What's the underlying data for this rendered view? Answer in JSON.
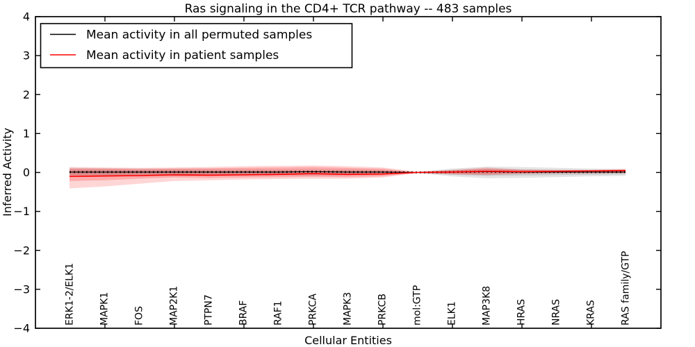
{
  "figure": {
    "background": "#ffffff",
    "border_color": "#000000"
  },
  "chart_data": {
    "type": "line",
    "title": "Ras signaling in the CD4+ TCR pathway -- 483 samples",
    "xlabel": "Cellular Entities",
    "ylabel": "Inferred Activity",
    "ylim": [
      -4,
      4
    ],
    "grid": false,
    "legend_position": "upper left",
    "yticks": [
      {
        "v": 4,
        "label": "4"
      },
      {
        "v": 3,
        "label": "3"
      },
      {
        "v": 2,
        "label": "2"
      },
      {
        "v": 1,
        "label": "1"
      },
      {
        "v": 0,
        "label": "0"
      },
      {
        "v": -1,
        "label": "−1"
      },
      {
        "v": -2,
        "label": "−2"
      },
      {
        "v": -3,
        "label": "−3"
      },
      {
        "v": -4,
        "label": "−4"
      }
    ],
    "x_axis": {
      "min": 0,
      "max": 18,
      "unlabeled_tick_values": [
        2,
        4,
        6,
        8,
        10,
        12,
        14,
        16
      ]
    },
    "categories": [
      "ERK1-2/ELK1",
      "MAPK1",
      "FOS",
      "MAP2K1",
      "PTPN7",
      "BRAF",
      "RAF1",
      "PRKCA",
      "MAPK3",
      "PRKCB",
      "mol:GTP",
      "ELK1",
      "MAP3K8",
      "HRAS",
      "NRAS",
      "KRAS",
      "RAS family/GTP"
    ],
    "series": [
      {
        "name": "Mean activity in all permuted samples",
        "color": "#000000",
        "style": "solid line with small dot markers",
        "values": [
          0.01,
          0.01,
          0.01,
          0.01,
          0.01,
          0.01,
          0.01,
          0.02,
          0.01,
          0.01,
          0.0,
          0.01,
          0.02,
          0.01,
          0.01,
          0.01,
          0.01
        ]
      },
      {
        "name": "Mean activity in patient samples",
        "color": "#ff0000",
        "style": "solid line",
        "values": [
          -0.1,
          -0.09,
          -0.08,
          -0.06,
          -0.07,
          -0.06,
          -0.05,
          -0.03,
          -0.05,
          -0.04,
          0.0,
          0.01,
          0.03,
          0.02,
          0.03,
          0.04,
          0.05
        ]
      }
    ],
    "bands": [
      {
        "name": "permuted-spread-outer",
        "color": "rgba(0,0,0,0.10)",
        "upper": [
          0.12,
          0.11,
          0.1,
          0.1,
          0.09,
          0.09,
          0.08,
          0.09,
          0.08,
          0.07,
          0.01,
          0.1,
          0.15,
          0.14,
          0.12,
          0.1,
          0.09
        ],
        "lower": [
          -0.12,
          -0.11,
          -0.1,
          -0.1,
          -0.09,
          -0.09,
          -0.08,
          -0.09,
          -0.08,
          -0.07,
          -0.01,
          -0.1,
          -0.15,
          -0.14,
          -0.12,
          -0.1,
          -0.09
        ]
      },
      {
        "name": "permuted-spread-inner",
        "color": "rgba(0,0,0,0.10)",
        "upper": [
          0.07,
          0.07,
          0.06,
          0.06,
          0.05,
          0.05,
          0.05,
          0.05,
          0.05,
          0.04,
          0.01,
          0.06,
          0.09,
          0.08,
          0.07,
          0.06,
          0.05
        ],
        "lower": [
          -0.07,
          -0.07,
          -0.06,
          -0.06,
          -0.05,
          -0.05,
          -0.05,
          -0.05,
          -0.05,
          -0.04,
          -0.01,
          -0.06,
          -0.09,
          -0.08,
          -0.07,
          -0.06,
          -0.05
        ]
      },
      {
        "name": "patient-spread-outer",
        "color": "rgba(255,0,0,0.16)",
        "upper": [
          0.14,
          0.13,
          0.12,
          0.13,
          0.14,
          0.16,
          0.17,
          0.18,
          0.16,
          0.13,
          0.02,
          0.07,
          0.13,
          0.08,
          0.07,
          0.07,
          0.09
        ],
        "lower": [
          -0.41,
          -0.36,
          -0.29,
          -0.22,
          -0.2,
          -0.18,
          -0.17,
          -0.16,
          -0.16,
          -0.13,
          -0.02,
          -0.05,
          -0.07,
          -0.04,
          -0.03,
          -0.03,
          -0.02
        ]
      },
      {
        "name": "patient-spread-inner",
        "color": "rgba(255,0,0,0.20)",
        "upper": [
          0.1,
          0.1,
          0.09,
          0.1,
          0.11,
          0.12,
          0.13,
          0.14,
          0.12,
          0.1,
          0.01,
          0.05,
          0.1,
          0.06,
          0.05,
          0.05,
          0.07
        ],
        "lower": [
          -0.22,
          -0.2,
          -0.16,
          -0.13,
          -0.14,
          -0.13,
          -0.12,
          -0.11,
          -0.12,
          -0.1,
          -0.01,
          -0.03,
          -0.05,
          -0.02,
          -0.01,
          -0.01,
          -0.01
        ]
      }
    ]
  }
}
